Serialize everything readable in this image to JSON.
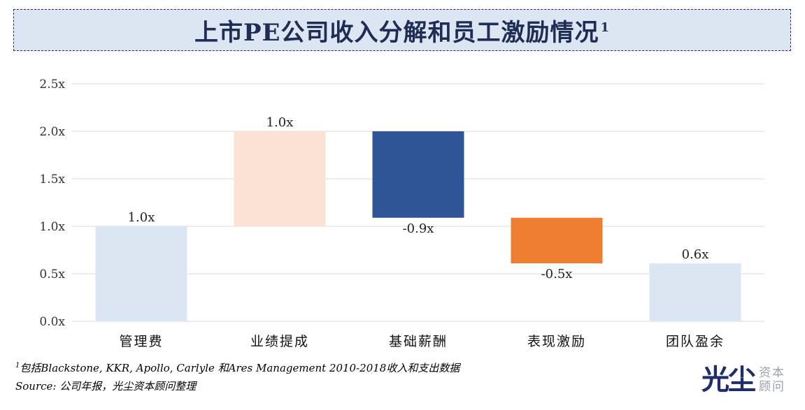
{
  "title": {
    "text": "上市PE公司收入分解和员工激励情况",
    "superscript": "1"
  },
  "chart_data": {
    "type": "bar",
    "subtype": "waterfall",
    "categories": [
      "管理费",
      "业绩提成",
      "基础薪酬",
      "表现激励",
      "团队盈余"
    ],
    "bars": [
      {
        "category": "管理费",
        "base": 0.0,
        "top": 1.0,
        "label": "1.0x",
        "color": "#dce6f2",
        "label_position": "above"
      },
      {
        "category": "业绩提成",
        "base": 1.0,
        "top": 2.0,
        "label": "1.0x",
        "color": "#fbe2d5",
        "label_position": "above"
      },
      {
        "category": "基础薪酬",
        "base": 1.09,
        "top": 2.0,
        "label": "-0.9x",
        "color": "#2f5597",
        "label_position": "below"
      },
      {
        "category": "表现激励",
        "base": 0.61,
        "top": 1.09,
        "label": "-0.5x",
        "color": "#ed7d31",
        "label_position": "below"
      },
      {
        "category": "团队盈余",
        "base": 0.0,
        "top": 0.61,
        "label": "0.6x",
        "color": "#dce6f2",
        "label_position": "above"
      }
    ],
    "yticks": [
      "0.0x",
      "0.5x",
      "1.0x",
      "1.5x",
      "2.0x",
      "2.5x"
    ],
    "ylim": [
      0,
      2.5
    ],
    "grid": true,
    "xlabel": "",
    "ylabel": ""
  },
  "footnotes": {
    "note_marker": "1",
    "note": "包括Blackstone, KKR, Apollo, Carlyle 和Ares Management 2010-2018收入和支出数据",
    "source": "Source: 公司年报，光尘资本顾问整理"
  },
  "logo": {
    "main": "光尘",
    "sub_line1": "资本",
    "sub_line2": "顾问"
  }
}
